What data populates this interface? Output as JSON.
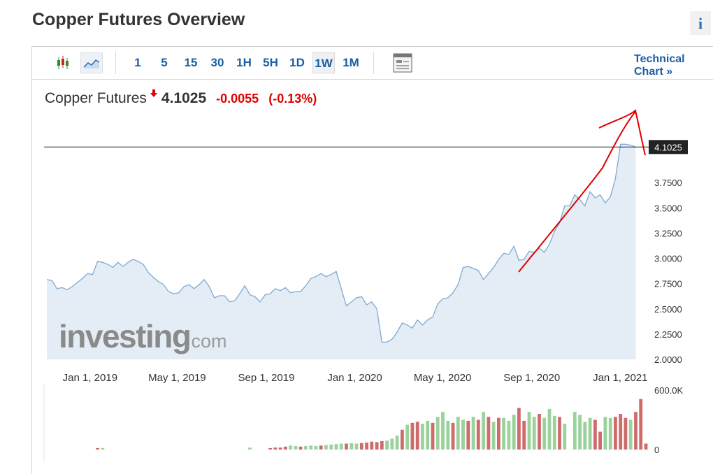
{
  "page": {
    "title": "Copper Futures Overview",
    "info_label": "i"
  },
  "toolbar": {
    "icons": [
      "candlestick-icon",
      "line-chart-icon",
      "layout-icon"
    ],
    "intervals": [
      {
        "label": "1",
        "active": false
      },
      {
        "label": "5",
        "active": false
      },
      {
        "label": "15",
        "active": false
      },
      {
        "label": "30",
        "active": false
      },
      {
        "label": "1H",
        "active": false
      },
      {
        "label": "5H",
        "active": false
      },
      {
        "label": "1D",
        "active": false
      },
      {
        "label": "1W",
        "active": true
      },
      {
        "label": "1M",
        "active": false
      }
    ],
    "technical_link": "Technical Chart »"
  },
  "quote": {
    "name": "Copper Futures",
    "price": "4.1025",
    "change": "-0.0055",
    "change_pct": "(-0.13%)",
    "direction": "down"
  },
  "watermark": {
    "brand": "investing",
    "suffix": ".com"
  },
  "colors": {
    "line": "#7fa9d3",
    "area": "#e4edf5",
    "up_volume": "#9bd29b",
    "down_volume": "#cf6b6b",
    "annotation": "#e00000",
    "accent": "#1a5fa4"
  },
  "chart_data": {
    "type": "area",
    "price_series": {
      "x": [
        "2018-12-09",
        "2018-12-16",
        "2018-12-23",
        "2018-12-30",
        "2019-01-06",
        "2019-01-13",
        "2019-01-20",
        "2019-01-27",
        "2019-02-03",
        "2019-02-10",
        "2019-02-17",
        "2019-02-24",
        "2019-03-03",
        "2019-03-10",
        "2019-03-17",
        "2019-03-24",
        "2019-03-31",
        "2019-04-07",
        "2019-04-14",
        "2019-04-21",
        "2019-04-28",
        "2019-05-05",
        "2019-05-12",
        "2019-05-19",
        "2019-05-26",
        "2019-06-02",
        "2019-06-09",
        "2019-06-16",
        "2019-06-23",
        "2019-06-30",
        "2019-07-07",
        "2019-07-14",
        "2019-07-21",
        "2019-07-28",
        "2019-08-04",
        "2019-08-11",
        "2019-08-18",
        "2019-08-25",
        "2019-09-01",
        "2019-09-08",
        "2019-09-15",
        "2019-09-22",
        "2019-09-29",
        "2019-10-06",
        "2019-10-13",
        "2019-10-20",
        "2019-10-27",
        "2019-11-03",
        "2019-11-10",
        "2019-11-17",
        "2019-11-24",
        "2019-12-01",
        "2019-12-08",
        "2019-12-15",
        "2019-12-22",
        "2019-12-29",
        "2020-01-05",
        "2020-01-12",
        "2020-01-19",
        "2020-01-26",
        "2020-02-02",
        "2020-02-09",
        "2020-02-16",
        "2020-02-23",
        "2020-03-01",
        "2020-03-08",
        "2020-03-15",
        "2020-03-22",
        "2020-03-29",
        "2020-04-05",
        "2020-04-12",
        "2020-04-19",
        "2020-04-26",
        "2020-05-03",
        "2020-05-10",
        "2020-05-17",
        "2020-05-24",
        "2020-05-31",
        "2020-06-07",
        "2020-06-14",
        "2020-06-21",
        "2020-06-28",
        "2020-07-05",
        "2020-07-12",
        "2020-07-19",
        "2020-07-26",
        "2020-08-02",
        "2020-08-09",
        "2020-08-16",
        "2020-08-23",
        "2020-08-30",
        "2020-09-06",
        "2020-09-13",
        "2020-09-20",
        "2020-09-27",
        "2020-10-04",
        "2020-10-11",
        "2020-10-18",
        "2020-10-25",
        "2020-11-01",
        "2020-11-08",
        "2020-11-15",
        "2020-11-22",
        "2020-11-29",
        "2020-12-06",
        "2020-12-13",
        "2020-12-20",
        "2020-12-27",
        "2021-01-03",
        "2021-01-10",
        "2021-01-17",
        "2021-01-24",
        "2021-01-31",
        "2021-02-07",
        "2021-02-14",
        "2021-02-21",
        "2021-02-28"
      ],
      "y": [
        2.79,
        2.78,
        2.7,
        2.71,
        2.69,
        2.72,
        2.76,
        2.8,
        2.85,
        2.84,
        2.97,
        2.96,
        2.94,
        2.91,
        2.96,
        2.92,
        2.96,
        2.99,
        2.97,
        2.94,
        2.86,
        2.81,
        2.77,
        2.74,
        2.67,
        2.65,
        2.66,
        2.72,
        2.74,
        2.7,
        2.74,
        2.79,
        2.72,
        2.61,
        2.63,
        2.63,
        2.57,
        2.58,
        2.65,
        2.73,
        2.64,
        2.62,
        2.57,
        2.64,
        2.65,
        2.7,
        2.68,
        2.71,
        2.66,
        2.67,
        2.67,
        2.73,
        2.8,
        2.82,
        2.85,
        2.82,
        2.84,
        2.87,
        2.7,
        2.53,
        2.57,
        2.61,
        2.62,
        2.54,
        2.57,
        2.5,
        2.17,
        2.17,
        2.2,
        2.27,
        2.36,
        2.34,
        2.31,
        2.39,
        2.34,
        2.39,
        2.42,
        2.55,
        2.6,
        2.61,
        2.66,
        2.74,
        2.91,
        2.92,
        2.9,
        2.88,
        2.79,
        2.85,
        2.91,
        2.99,
        3.05,
        3.04,
        3.12,
        2.98,
        2.99,
        3.07,
        3.06,
        3.1,
        3.06,
        3.14,
        3.27,
        3.35,
        3.52,
        3.52,
        3.63,
        3.58,
        3.52,
        3.66,
        3.6,
        3.63,
        3.55,
        3.61,
        3.79,
        4.13,
        4.13,
        4.12,
        4.1025
      ]
    },
    "volume_series": {
      "values": [
        0,
        0,
        0,
        0,
        0,
        0,
        0,
        0,
        0,
        0,
        0,
        0,
        0,
        0,
        0,
        0,
        0,
        0,
        0,
        0,
        0,
        0,
        0,
        0,
        0,
        0,
        0,
        0,
        0,
        0,
        0,
        0,
        0,
        0,
        0,
        0,
        0,
        0,
        0,
        0,
        0,
        0,
        0,
        0,
        0,
        0,
        0,
        0,
        0,
        0,
        0,
        0,
        0,
        0,
        0,
        0,
        0,
        0,
        0,
        0,
        0,
        0,
        0,
        0,
        0,
        0,
        0,
        0,
        0,
        0,
        0,
        0,
        0,
        0,
        0,
        0,
        0,
        0,
        0,
        0,
        0,
        0,
        0,
        0,
        0,
        0,
        0,
        0,
        0,
        0,
        0,
        0,
        0,
        0,
        0,
        0,
        0,
        0,
        0,
        0,
        0,
        0,
        0,
        0,
        0,
        0,
        0,
        0,
        0,
        0,
        0,
        0,
        0,
        0,
        0,
        0,
        0
      ],
      "points": [
        [
          "2019-02-17",
          15000,
          "down"
        ],
        [
          "2019-02-24",
          15000,
          "up"
        ],
        [
          "2019-09-15",
          20000,
          "up"
        ],
        [
          "2019-10-13",
          15000,
          "down"
        ],
        [
          "2019-10-20",
          20000,
          "down"
        ],
        [
          "2019-10-27",
          20000,
          "down"
        ],
        [
          "2019-11-03",
          30000,
          "down"
        ],
        [
          "2019-11-10",
          40000,
          "up"
        ],
        [
          "2019-11-17",
          35000,
          "up"
        ],
        [
          "2019-11-24",
          30000,
          "down"
        ],
        [
          "2019-12-01",
          35000,
          "up"
        ],
        [
          "2019-12-08",
          40000,
          "up"
        ],
        [
          "2019-12-15",
          35000,
          "up"
        ],
        [
          "2019-12-22",
          40000,
          "down"
        ],
        [
          "2019-12-29",
          45000,
          "up"
        ],
        [
          "2020-01-05",
          50000,
          "up"
        ],
        [
          "2020-01-12",
          55000,
          "up"
        ],
        [
          "2020-01-19",
          60000,
          "up"
        ],
        [
          "2020-01-26",
          60000,
          "down"
        ],
        [
          "2020-02-02",
          65000,
          "up"
        ],
        [
          "2020-02-09",
          60000,
          "up"
        ],
        [
          "2020-02-16",
          65000,
          "down"
        ],
        [
          "2020-02-23",
          70000,
          "down"
        ],
        [
          "2020-03-01",
          80000,
          "down"
        ],
        [
          "2020-03-08",
          75000,
          "down"
        ],
        [
          "2020-03-15",
          85000,
          "down"
        ],
        [
          "2020-03-22",
          90000,
          "up"
        ],
        [
          "2020-03-29",
          110000,
          "up"
        ],
        [
          "2020-04-05",
          140000,
          "up"
        ],
        [
          "2020-04-12",
          200000,
          "down"
        ],
        [
          "2020-04-19",
          250000,
          "up"
        ],
        [
          "2020-04-26",
          270000,
          "down"
        ],
        [
          "2020-05-03",
          280000,
          "down"
        ],
        [
          "2020-05-10",
          260000,
          "up"
        ],
        [
          "2020-05-17",
          290000,
          "up"
        ],
        [
          "2020-05-24",
          270000,
          "down"
        ],
        [
          "2020-05-31",
          330000,
          "up"
        ],
        [
          "2020-06-07",
          380000,
          "up"
        ],
        [
          "2020-06-14",
          290000,
          "up"
        ],
        [
          "2020-06-21",
          270000,
          "down"
        ],
        [
          "2020-06-28",
          330000,
          "up"
        ],
        [
          "2020-07-05",
          300000,
          "up"
        ],
        [
          "2020-07-12",
          290000,
          "down"
        ],
        [
          "2020-07-19",
          330000,
          "up"
        ],
        [
          "2020-07-26",
          300000,
          "down"
        ],
        [
          "2020-08-02",
          380000,
          "up"
        ],
        [
          "2020-08-09",
          330000,
          "down"
        ],
        [
          "2020-08-16",
          280000,
          "up"
        ],
        [
          "2020-08-23",
          320000,
          "down"
        ],
        [
          "2020-08-30",
          320000,
          "up"
        ],
        [
          "2020-09-06",
          290000,
          "up"
        ],
        [
          "2020-09-13",
          350000,
          "up"
        ],
        [
          "2020-09-20",
          420000,
          "down"
        ],
        [
          "2020-09-27",
          290000,
          "down"
        ],
        [
          "2020-10-04",
          380000,
          "up"
        ],
        [
          "2020-10-11",
          330000,
          "up"
        ],
        [
          "2020-10-18",
          360000,
          "down"
        ],
        [
          "2020-10-25",
          320000,
          "up"
        ],
        [
          "2020-11-01",
          410000,
          "up"
        ],
        [
          "2020-11-08",
          340000,
          "up"
        ],
        [
          "2020-11-15",
          330000,
          "down"
        ],
        [
          "2020-11-22",
          260000,
          "up"
        ],
        [
          "2020-12-06",
          380000,
          "up"
        ],
        [
          "2020-12-13",
          350000,
          "up"
        ],
        [
          "2020-12-20",
          280000,
          "up"
        ],
        [
          "2020-12-27",
          320000,
          "up"
        ],
        [
          "2021-01-03",
          300000,
          "down"
        ],
        [
          "2021-01-10",
          180000,
          "down"
        ],
        [
          "2021-01-17",
          330000,
          "up"
        ],
        [
          "2021-01-24",
          320000,
          "up"
        ],
        [
          "2021-01-31",
          330000,
          "down"
        ],
        [
          "2021-02-07",
          360000,
          "down"
        ],
        [
          "2021-02-14",
          320000,
          "down"
        ],
        [
          "2021-02-21",
          300000,
          "up"
        ],
        [
          "2021-02-28",
          380000,
          "down"
        ],
        [
          "2021-03-07",
          510000,
          "down"
        ],
        [
          "2021-03-14",
          60000,
          "down"
        ]
      ]
    },
    "y_ticks": [
      "2.0000",
      "2.2500",
      "2.5000",
      "2.7500",
      "3.0000",
      "3.2500",
      "3.5000",
      "3.7500"
    ],
    "ylim": [
      2.0,
      4.25
    ],
    "current_price_label": "4.1025",
    "current_price": 4.1025,
    "x_ticks": [
      {
        "date": "2019-01-01",
        "label": "Jan 1, 2019"
      },
      {
        "date": "2019-05-01",
        "label": "May 1, 2019"
      },
      {
        "date": "2019-09-01",
        "label": "Sep 1, 2019"
      },
      {
        "date": "2020-01-01",
        "label": "Jan 1, 2020"
      },
      {
        "date": "2020-05-01",
        "label": "May 1, 2020"
      },
      {
        "date": "2020-09-01",
        "label": "Sep 1, 2020"
      },
      {
        "date": "2021-01-01",
        "label": "Jan 1, 2021"
      }
    ],
    "xlim": [
      "2018-12-09",
      "2021-03-14"
    ],
    "volume_ticks": [
      "0",
      "600.0K"
    ],
    "volume_max": 600000,
    "grid": false
  }
}
